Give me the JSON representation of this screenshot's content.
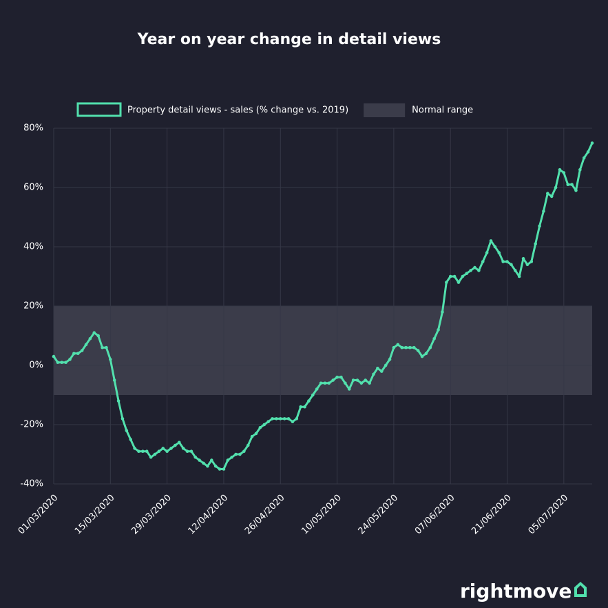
{
  "chart_data": {
    "type": "line",
    "title": "Year on year change in detail views",
    "brand": "rightmove",
    "legend_position": "top",
    "grid": true,
    "x": [
      "01/03/2020",
      "02/03/2020",
      "03/03/2020",
      "04/03/2020",
      "05/03/2020",
      "06/03/2020",
      "07/03/2020",
      "08/03/2020",
      "09/03/2020",
      "10/03/2020",
      "11/03/2020",
      "12/03/2020",
      "13/03/2020",
      "14/03/2020",
      "15/03/2020",
      "16/03/2020",
      "17/03/2020",
      "18/03/2020",
      "19/03/2020",
      "20/03/2020",
      "21/03/2020",
      "22/03/2020",
      "23/03/2020",
      "24/03/2020",
      "25/03/2020",
      "26/03/2020",
      "27/03/2020",
      "28/03/2020",
      "29/03/2020",
      "30/03/2020",
      "31/03/2020",
      "01/04/2020",
      "02/04/2020",
      "03/04/2020",
      "04/04/2020",
      "05/04/2020",
      "06/04/2020",
      "07/04/2020",
      "08/04/2020",
      "09/04/2020",
      "10/04/2020",
      "11/04/2020",
      "12/04/2020",
      "13/04/2020",
      "14/04/2020",
      "15/04/2020",
      "16/04/2020",
      "17/04/2020",
      "18/04/2020",
      "19/04/2020",
      "20/04/2020",
      "21/04/2020",
      "22/04/2020",
      "23/04/2020",
      "24/04/2020",
      "25/04/2020",
      "26/04/2020",
      "27/04/2020",
      "28/04/2020",
      "29/04/2020",
      "30/04/2020",
      "01/05/2020",
      "02/05/2020",
      "03/05/2020",
      "04/05/2020",
      "05/05/2020",
      "06/05/2020",
      "07/05/2020",
      "08/05/2020",
      "09/05/2020",
      "10/05/2020",
      "11/05/2020",
      "12/05/2020",
      "13/05/2020",
      "14/05/2020",
      "15/05/2020",
      "16/05/2020",
      "17/05/2020",
      "18/05/2020",
      "19/05/2020",
      "20/05/2020",
      "21/05/2020",
      "22/05/2020",
      "23/05/2020",
      "24/05/2020",
      "25/05/2020",
      "26/05/2020",
      "27/05/2020",
      "28/05/2020",
      "29/05/2020",
      "30/05/2020",
      "31/05/2020",
      "01/06/2020",
      "02/06/2020",
      "03/06/2020",
      "04/06/2020",
      "05/06/2020",
      "06/06/2020",
      "07/06/2020",
      "08/06/2020",
      "09/06/2020",
      "10/06/2020",
      "11/06/2020",
      "12/06/2020",
      "13/06/2020",
      "14/06/2020",
      "15/06/2020",
      "16/06/2020",
      "17/06/2020",
      "18/06/2020",
      "19/06/2020",
      "20/06/2020",
      "21/06/2020",
      "22/06/2020",
      "23/06/2020",
      "24/06/2020",
      "25/06/2020",
      "26/06/2020",
      "27/06/2020",
      "28/06/2020",
      "29/06/2020",
      "30/06/2020",
      "01/07/2020",
      "02/07/2020",
      "03/07/2020",
      "04/07/2020",
      "05/07/2020",
      "06/07/2020",
      "07/07/2020",
      "08/07/2020",
      "09/07/2020",
      "10/07/2020",
      "11/07/2020",
      "12/07/2020"
    ],
    "xticks": [
      "01/03/2020",
      "15/03/2020",
      "29/03/2020",
      "12/04/2020",
      "26/04/2020",
      "10/05/2020",
      "24/05/2020",
      "07/06/2020",
      "21/06/2020",
      "05/07/2020"
    ],
    "series": [
      {
        "name": "Property detail views - sales (% change vs. 2019)",
        "color": "#52e0ad",
        "values": [
          3,
          1,
          1,
          1,
          2,
          4,
          4,
          5,
          7,
          9,
          11,
          10,
          6,
          6,
          2,
          -5,
          -12,
          -18,
          -22,
          -25,
          -28,
          -29,
          -29,
          -29,
          -31,
          -30,
          -29,
          -28,
          -29,
          -28,
          -27,
          -26,
          -28,
          -29,
          -29,
          -31,
          -32,
          -33,
          -34,
          -32,
          -34,
          -35,
          -35,
          -32,
          -31,
          -30,
          -30,
          -29,
          -27,
          -24,
          -23,
          -21,
          -20,
          -19,
          -18,
          -18,
          -18,
          -18,
          -18,
          -19,
          -18,
          -14,
          -14,
          -12,
          -10,
          -8,
          -6,
          -6,
          -6,
          -5,
          -4,
          -4,
          -6,
          -8,
          -5,
          -5,
          -6,
          -5,
          -6,
          -3,
          -1,
          -2,
          0,
          2,
          6,
          7,
          6,
          6,
          6,
          6,
          5,
          3,
          4,
          6,
          9,
          12,
          18,
          28,
          30,
          30,
          28,
          30,
          31,
          32,
          33,
          32,
          35,
          38,
          42,
          40,
          38,
          35,
          35,
          34,
          32,
          30,
          36,
          34,
          35,
          41,
          47,
          52,
          58,
          57,
          60,
          66,
          65,
          61,
          61,
          59,
          66,
          70,
          72,
          75
        ]
      }
    ],
    "bands": [
      {
        "name": "Normal range",
        "from": -10,
        "to": 20,
        "color": "#3b3c4a"
      }
    ],
    "ylim": [
      -40,
      80
    ],
    "yticks": [
      {
        "value": -40,
        "label": "-40%"
      },
      {
        "value": -20,
        "label": "-20%"
      },
      {
        "value": 0,
        "label": "0%"
      },
      {
        "value": 20,
        "label": "20%"
      },
      {
        "value": 40,
        "label": "40%"
      },
      {
        "value": 60,
        "label": "60%"
      },
      {
        "value": 80,
        "label": "80%"
      }
    ]
  }
}
